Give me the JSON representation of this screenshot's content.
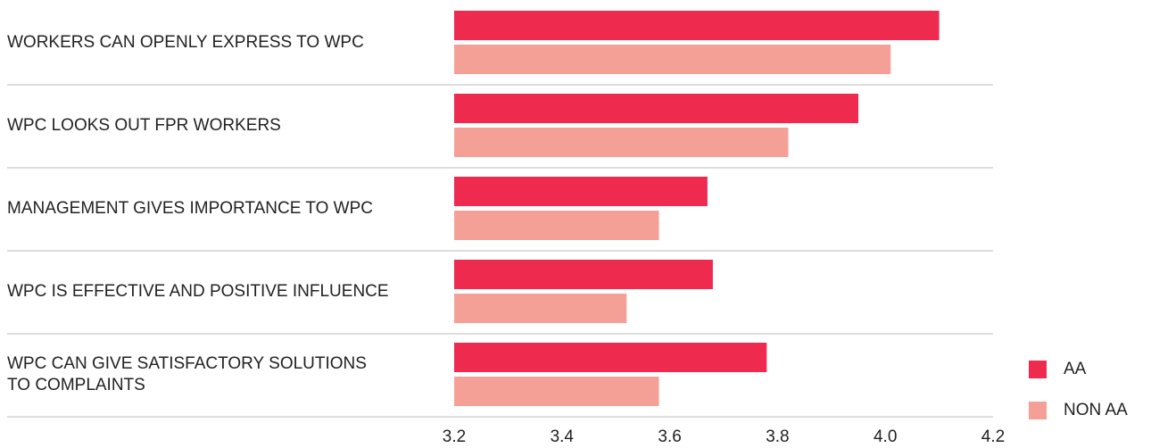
{
  "chart_data": {
    "type": "bar",
    "orientation": "horizontal",
    "categories": [
      "WORKERS CAN OPENLY EXPRESS TO WPC",
      "WPC LOOKS OUT FPR WORKERS",
      "MANAGEMENT GIVES IMPORTANCE TO WPC",
      "WPC IS EFFECTIVE AND POSITIVE INFLUENCE",
      "WPC CAN GIVE SATISFACTORY SOLUTIONS\nTO COMPLAINTS"
    ],
    "series": [
      {
        "name": "AA",
        "color": "#ee2a4f",
        "values": [
          4.1,
          3.95,
          3.67,
          3.68,
          3.78
        ]
      },
      {
        "name": "NON AA",
        "color": "#f5a097",
        "values": [
          4.01,
          3.82,
          3.58,
          3.52,
          3.58
        ]
      }
    ],
    "xlim": [
      3.2,
      4.2
    ],
    "xticks": [
      3.2,
      3.4,
      3.6,
      3.8,
      {
        "value": 4,
        "label": "4.0"
      },
      4.2
    ],
    "legend": "bottom-right"
  }
}
